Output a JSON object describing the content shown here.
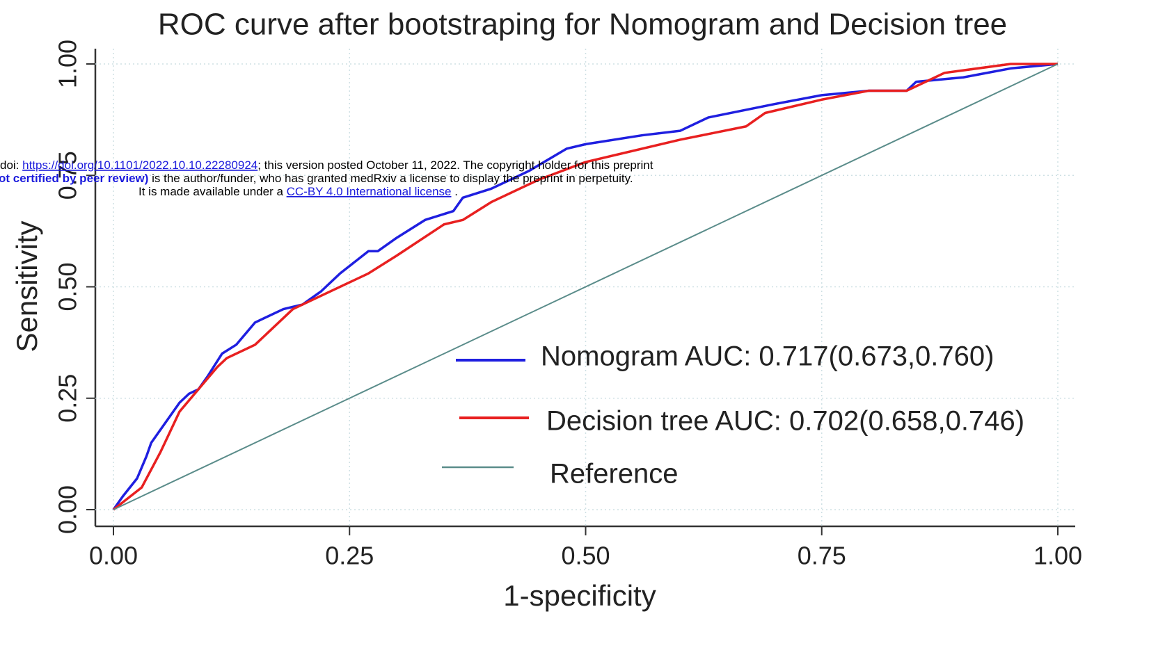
{
  "chart_data": {
    "type": "line",
    "title": "ROC curve after bootstraping for Nomogram and Decision tree",
    "xlabel": "1-specificity",
    "ylabel": "Sensitivity",
    "xlim": [
      0,
      1
    ],
    "ylim": [
      0,
      1
    ],
    "xticks": [
      {
        "value": 0,
        "label": "0.00"
      },
      {
        "value": 0.25,
        "label": "0.25"
      },
      {
        "value": 0.5,
        "label": "0.50"
      },
      {
        "value": 0.75,
        "label": "0.75"
      },
      {
        "value": 1,
        "label": "1.00"
      }
    ],
    "yticks": [
      {
        "value": 0,
        "label": "0.00"
      },
      {
        "value": 0.25,
        "label": "0.25"
      },
      {
        "value": 0.5,
        "label": "0.50"
      },
      {
        "value": 0.75,
        "label": "0.75"
      },
      {
        "value": 1,
        "label": "1.00"
      }
    ],
    "grid": true,
    "series": [
      {
        "name": "Nomogram  AUC: 0.717(0.673,0.760)",
        "color": "#1f1fe0",
        "x": [
          0,
          0.01,
          0.025,
          0.035,
          0.04,
          0.05,
          0.06,
          0.07,
          0.08,
          0.09,
          0.1,
          0.115,
          0.13,
          0.15,
          0.17,
          0.18,
          0.2,
          0.22,
          0.24,
          0.27,
          0.28,
          0.3,
          0.33,
          0.36,
          0.37,
          0.4,
          0.44,
          0.48,
          0.5,
          0.56,
          0.6,
          0.63,
          0.7,
          0.75,
          0.8,
          0.84,
          0.85,
          0.9,
          0.95,
          1
        ],
        "values": [
          0,
          0.03,
          0.07,
          0.12,
          0.15,
          0.18,
          0.21,
          0.24,
          0.26,
          0.27,
          0.3,
          0.35,
          0.37,
          0.42,
          0.44,
          0.45,
          0.46,
          0.49,
          0.53,
          0.58,
          0.58,
          0.61,
          0.65,
          0.67,
          0.7,
          0.72,
          0.76,
          0.81,
          0.82,
          0.84,
          0.85,
          0.88,
          0.91,
          0.93,
          0.94,
          0.94,
          0.96,
          0.97,
          0.99,
          1
        ]
      },
      {
        "name": "Decision tree AUC: 0.702(0.658,0.746)",
        "color": "#e82020",
        "x": [
          0,
          0.03,
          0.05,
          0.07,
          0.09,
          0.11,
          0.12,
          0.15,
          0.19,
          0.21,
          0.25,
          0.27,
          0.3,
          0.35,
          0.37,
          0.4,
          0.45,
          0.5,
          0.6,
          0.67,
          0.69,
          0.75,
          0.8,
          0.84,
          0.88,
          0.95,
          1
        ],
        "values": [
          0,
          0.05,
          0.13,
          0.22,
          0.27,
          0.32,
          0.34,
          0.37,
          0.45,
          0.47,
          0.51,
          0.53,
          0.57,
          0.64,
          0.65,
          0.69,
          0.74,
          0.78,
          0.83,
          0.86,
          0.89,
          0.92,
          0.94,
          0.94,
          0.98,
          1,
          1
        ]
      },
      {
        "name": "Reference",
        "color": "#5a8c8a",
        "x": [
          0,
          1
        ],
        "values": [
          0,
          1
        ]
      }
    ]
  },
  "watermark": {
    "line1": [
      "doi: ",
      "https://doi.org/10.1101/2022.10.10.22280924",
      "; this version posted October 11, 2022. The copyright holder for this preprint"
    ],
    "line2": [
      "ot certified by peer review)",
      " is the author/funder, who has granted medRxiv a license to display the preprint in perpetuity."
    ],
    "line3": [
      "It is made available under a ",
      "CC-BY 4.0 International license",
      " ."
    ]
  }
}
